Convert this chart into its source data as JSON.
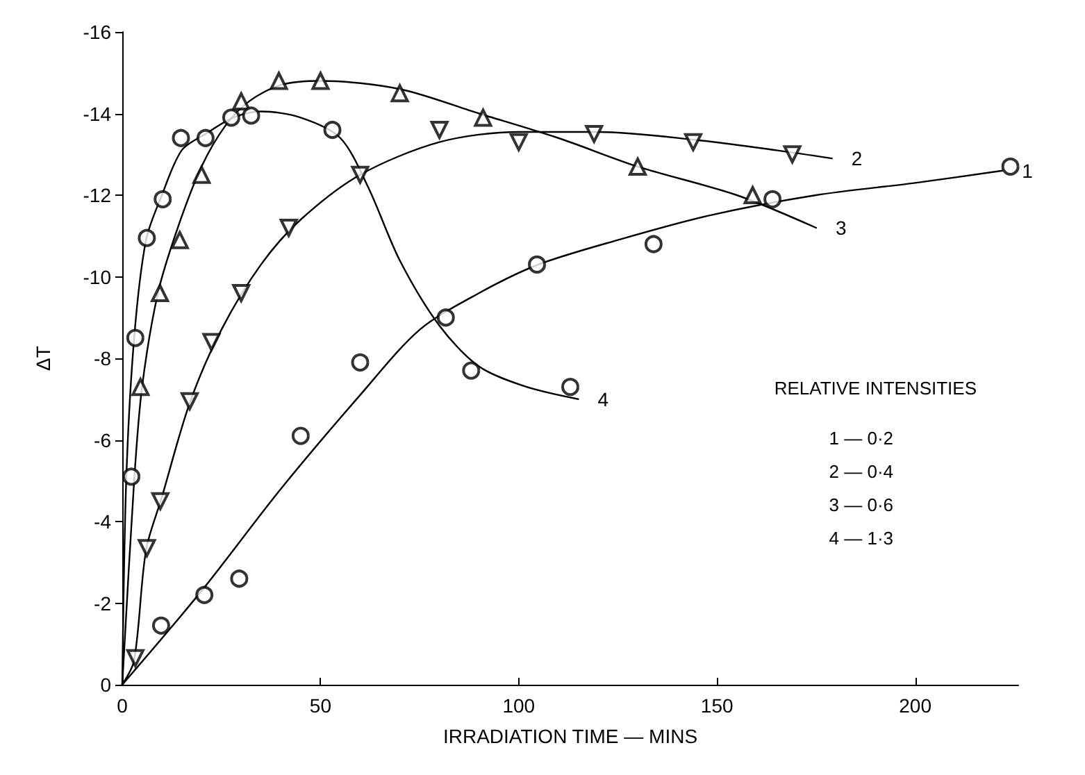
{
  "chart_data": {
    "type": "scatter",
    "xlabel": "IRRADIATION TIME — MINS",
    "ylabel": "ΔT",
    "xlim": [
      0,
      226
    ],
    "ylim": [
      0,
      -16
    ],
    "xticks": [
      0,
      50,
      100,
      150,
      200
    ],
    "yticks": [
      0,
      -2,
      -4,
      -6,
      -8,
      -10,
      -12,
      -14,
      -16
    ],
    "grid": false,
    "legend": false,
    "annotations": [
      "RELATIVE INTENSITIES",
      "1 — 0·2",
      "2 — 0·4",
      "3 — 0·6",
      "4 — 1·3"
    ],
    "series": [
      {
        "marker": "circle",
        "color": "#000000",
        "x": [
          9.8,
          20.7,
          29.5,
          45,
          60,
          81.6,
          104.6,
          134,
          164,
          224
        ],
        "values": [
          -1.45,
          -2.2,
          -2.6,
          -6.1,
          -7.9,
          -9.0,
          -10.3,
          -10.8,
          -11.9,
          -12.7
        ]
      },
      {
        "marker": "triangle-down",
        "color": "#000000",
        "x": [
          3.3,
          6.2,
          9.6,
          17,
          22.5,
          30,
          42,
          60,
          80,
          100,
          119,
          144,
          169
        ],
        "values": [
          -0.65,
          -3.35,
          -4.5,
          -6.95,
          -8.4,
          -9.6,
          -11.2,
          -12.5,
          -13.6,
          -13.3,
          -13.5,
          -13.3,
          -13.0
        ]
      },
      {
        "marker": "triangle",
        "color": "#000000",
        "x": [
          4.6,
          9.5,
          14.5,
          20,
          30,
          39.5,
          50,
          70,
          91,
          130,
          159
        ],
        "values": [
          -7.3,
          -9.6,
          -10.9,
          -12.5,
          -14.3,
          -14.8,
          -14.8,
          -14.5,
          -13.9,
          -12.7,
          -12.0
        ]
      },
      {
        "marker": "circle",
        "color": "#000000",
        "x": [
          2.3,
          3.3,
          6.2,
          10.2,
          14.8,
          21,
          27.5,
          32.5,
          53,
          88,
          113
        ],
        "values": [
          -5.1,
          -8.5,
          -10.95,
          -11.9,
          -13.4,
          -13.4,
          -13.9,
          -13.95,
          -13.6,
          -7.7,
          -7.3
        ]
      },
      {
        "type": "line",
        "name": "1",
        "marker": "none",
        "color": "#000000",
        "x": [
          0,
          20,
          40,
          60,
          75,
          90,
          105,
          125,
          148,
          175,
          200,
          222
        ],
        "values": [
          0,
          -2.3,
          -4.8,
          -7.1,
          -8.7,
          -9.6,
          -10.3,
          -10.9,
          -11.5,
          -12.0,
          -12.3,
          -12.6
        ]
      },
      {
        "type": "line",
        "name": "2",
        "marker": "none",
        "color": "#000000",
        "x": [
          0,
          3,
          6,
          10,
          17,
          25,
          35,
          45,
          60,
          80,
          100,
          120,
          145,
          165,
          179
        ],
        "values": [
          0,
          -0.6,
          -3.3,
          -4.6,
          -6.9,
          -8.7,
          -10.3,
          -11.4,
          -12.5,
          -13.3,
          -13.55,
          -13.55,
          -13.35,
          -13.1,
          -12.9
        ]
      },
      {
        "type": "line",
        "name": "3",
        "marker": "none",
        "color": "#000000",
        "x": [
          0,
          3,
          5,
          9,
          14,
          20,
          26,
          32,
          40,
          50,
          70,
          90,
          110,
          130,
          155,
          175
        ],
        "values": [
          0,
          -5,
          -7.3,
          -9.6,
          -11.2,
          -12.7,
          -13.7,
          -14.3,
          -14.7,
          -14.8,
          -14.6,
          -14.0,
          -13.4,
          -12.7,
          -12.0,
          -11.2
        ]
      },
      {
        "type": "line",
        "name": "4",
        "marker": "none",
        "color": "#000000",
        "x": [
          0,
          1,
          3,
          6,
          10,
          15,
          21,
          28,
          35,
          45,
          55,
          62,
          70,
          80,
          90,
          102,
          115
        ],
        "values": [
          0,
          -5,
          -8.5,
          -10.9,
          -12,
          -13.1,
          -13.5,
          -13.9,
          -14.05,
          -13.9,
          -13.4,
          -12.2,
          -10.4,
          -8.8,
          -7.8,
          -7.3,
          -7.0
        ]
      }
    ]
  }
}
